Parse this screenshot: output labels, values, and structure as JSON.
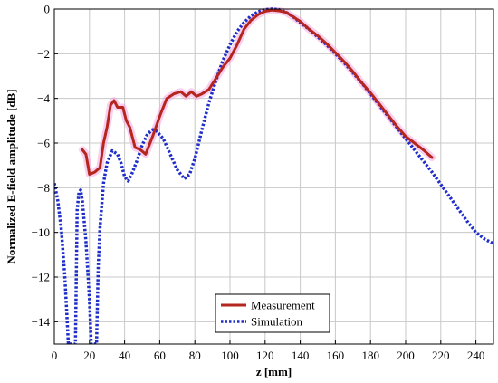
{
  "chart_data": {
    "type": "line",
    "xlabel": "z [mm]",
    "ylabel": "Normalized E-field amplitude [dB]",
    "xlim": [
      0,
      250
    ],
    "ylim": [
      -15,
      0
    ],
    "x_ticks": [
      0,
      20,
      40,
      60,
      80,
      100,
      120,
      140,
      160,
      180,
      200,
      220,
      240
    ],
    "y_ticks": [
      0,
      -2,
      -4,
      -6,
      -8,
      -10,
      -12,
      -14
    ],
    "x_tick_labels": [
      "0",
      "20",
      "40",
      "60",
      "80",
      "100",
      "120",
      "140",
      "160",
      "180",
      "200",
      "220",
      "240"
    ],
    "y_tick_labels": [
      "0",
      "−2",
      "−4",
      "−6",
      "−8",
      "−10",
      "−12",
      "−14"
    ],
    "grid": true,
    "legend_position": "bottom-center",
    "series": [
      {
        "name": "Measurement",
        "color": "#b5261e",
        "glow_color": "#f6a6df",
        "style": "solid",
        "points": [
          [
            16,
            -6.3
          ],
          [
            18,
            -6.5
          ],
          [
            20,
            -7.4
          ],
          [
            23,
            -7.3
          ],
          [
            26,
            -7.1
          ],
          [
            28,
            -6.0
          ],
          [
            30,
            -5.3
          ],
          [
            32,
            -4.3
          ],
          [
            34,
            -4.1
          ],
          [
            36,
            -4.4
          ],
          [
            39,
            -4.4
          ],
          [
            41,
            -5.0
          ],
          [
            43,
            -5.3
          ],
          [
            46,
            -6.2
          ],
          [
            49,
            -6.3
          ],
          [
            52,
            -6.5
          ],
          [
            56,
            -5.7
          ],
          [
            60,
            -4.8
          ],
          [
            64,
            -4.0
          ],
          [
            68,
            -3.8
          ],
          [
            72,
            -3.7
          ],
          [
            75,
            -3.9
          ],
          [
            78,
            -3.7
          ],
          [
            81,
            -3.9
          ],
          [
            84,
            -3.8
          ],
          [
            88,
            -3.6
          ],
          [
            92,
            -3.1
          ],
          [
            96,
            -2.6
          ],
          [
            100,
            -2.2
          ],
          [
            104,
            -1.6
          ],
          [
            108,
            -0.9
          ],
          [
            112,
            -0.5
          ],
          [
            116,
            -0.25
          ],
          [
            120,
            -0.1
          ],
          [
            124,
            -0.05
          ],
          [
            128,
            -0.08
          ],
          [
            132,
            -0.15
          ],
          [
            136,
            -0.35
          ],
          [
            140,
            -0.55
          ],
          [
            145,
            -0.9
          ],
          [
            150,
            -1.2
          ],
          [
            155,
            -1.55
          ],
          [
            160,
            -1.95
          ],
          [
            165,
            -2.35
          ],
          [
            170,
            -2.8
          ],
          [
            175,
            -3.3
          ],
          [
            180,
            -3.75
          ],
          [
            185,
            -4.25
          ],
          [
            190,
            -4.75
          ],
          [
            195,
            -5.25
          ],
          [
            200,
            -5.7
          ],
          [
            205,
            -6.0
          ],
          [
            210,
            -6.3
          ],
          [
            215,
            -6.65
          ]
        ]
      },
      {
        "name": "Simulation",
        "color": "#1f2ec8",
        "style": "dotted",
        "points": [
          [
            0,
            -7.8
          ],
          [
            2,
            -8.6
          ],
          [
            4,
            -9.9
          ],
          [
            6,
            -12.0
          ],
          [
            7,
            -13.5
          ],
          [
            8,
            -15.0
          ],
          [
            12,
            -15.0
          ],
          [
            13,
            -9.0
          ],
          [
            14,
            -8.2
          ],
          [
            15,
            -8.1
          ],
          [
            16,
            -8.6
          ],
          [
            18,
            -10.4
          ],
          [
            20,
            -13.0
          ],
          [
            21,
            -15.0
          ],
          [
            24,
            -15.0
          ],
          [
            25,
            -11.5
          ],
          [
            26,
            -9.8
          ],
          [
            28,
            -7.8
          ],
          [
            30,
            -6.9
          ],
          [
            33,
            -6.35
          ],
          [
            36,
            -6.5
          ],
          [
            38,
            -6.9
          ],
          [
            40,
            -7.5
          ],
          [
            42,
            -7.7
          ],
          [
            44,
            -7.4
          ],
          [
            47,
            -6.8
          ],
          [
            50,
            -6.1
          ],
          [
            53,
            -5.6
          ],
          [
            56,
            -5.4
          ],
          [
            58,
            -5.45
          ],
          [
            62,
            -5.8
          ],
          [
            66,
            -6.5
          ],
          [
            70,
            -7.2
          ],
          [
            74,
            -7.6
          ],
          [
            77,
            -7.4
          ],
          [
            80,
            -6.7
          ],
          [
            84,
            -5.4
          ],
          [
            88,
            -4.2
          ],
          [
            92,
            -3.2
          ],
          [
            96,
            -2.3
          ],
          [
            100,
            -1.6
          ],
          [
            104,
            -1.0
          ],
          [
            108,
            -0.6
          ],
          [
            112,
            -0.3
          ],
          [
            116,
            -0.12
          ],
          [
            120,
            -0.03
          ],
          [
            124,
            0.0
          ],
          [
            128,
            -0.03
          ],
          [
            132,
            -0.15
          ],
          [
            136,
            -0.35
          ],
          [
            140,
            -0.6
          ],
          [
            145,
            -0.9
          ],
          [
            150,
            -1.25
          ],
          [
            155,
            -1.6
          ],
          [
            160,
            -2.0
          ],
          [
            165,
            -2.4
          ],
          [
            170,
            -2.85
          ],
          [
            175,
            -3.3
          ],
          [
            180,
            -3.8
          ],
          [
            185,
            -4.3
          ],
          [
            190,
            -4.8
          ],
          [
            195,
            -5.3
          ],
          [
            200,
            -5.8
          ],
          [
            205,
            -6.3
          ],
          [
            210,
            -6.8
          ],
          [
            215,
            -7.3
          ],
          [
            220,
            -7.85
          ],
          [
            225,
            -8.4
          ],
          [
            230,
            -8.95
          ],
          [
            235,
            -9.5
          ],
          [
            240,
            -10.0
          ],
          [
            245,
            -10.3
          ],
          [
            250,
            -10.5
          ]
        ]
      }
    ]
  }
}
